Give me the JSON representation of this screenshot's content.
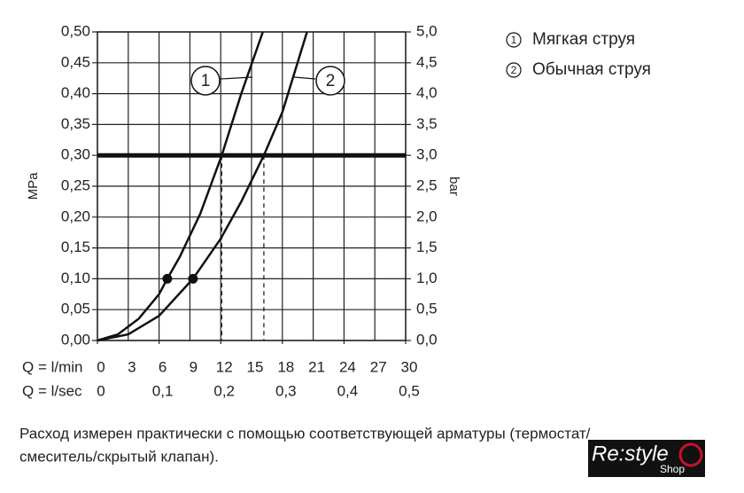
{
  "chart_data": {
    "type": "line",
    "series": [
      {
        "name": "Мягкая струя",
        "label": "1",
        "color": "#111",
        "x": [
          0,
          2,
          4,
          6,
          6.8,
          8,
          10,
          12.1,
          14,
          16.1
        ],
        "values": [
          0,
          0.01,
          0.035,
          0.075,
          0.1,
          0.135,
          0.205,
          0.3,
          0.4,
          0.5
        ]
      },
      {
        "name": "Обычная струя",
        "label": "2",
        "color": "#111",
        "x": [
          0,
          3,
          6,
          9.3,
          12,
          14,
          16.2,
          18,
          20.4
        ],
        "values": [
          0,
          0.01,
          0.04,
          0.1,
          0.165,
          0.225,
          0.3,
          0.37,
          0.5
        ]
      }
    ],
    "dots": [
      {
        "x": 6.8,
        "y": 0.1
      },
      {
        "x": 9.3,
        "y": 0.1
      }
    ],
    "reference_line": 0.3,
    "drop_lines": [
      {
        "x": 12.1,
        "y": 0.3
      },
      {
        "x": 16.2,
        "y": 0.3
      }
    ],
    "xlim": [
      0,
      30
    ],
    "xticks": [
      0,
      3,
      6,
      9,
      12,
      15,
      18,
      21,
      24,
      27,
      30
    ],
    "xlabel": "Q = l/min",
    "x2lim": [
      0,
      0.5
    ],
    "x2ticks": [
      0,
      {
        "value": 0.1,
        "label": "0,1"
      },
      {
        "value": 0.2,
        "label": "0,2"
      },
      {
        "value": 0.3,
        "label": "0,3"
      },
      {
        "value": 0.4,
        "label": "0,4"
      },
      {
        "value": 0.5,
        "label": "0,5"
      }
    ],
    "x2label": "Q = l/sec",
    "ylim": [
      0,
      0.5
    ],
    "yticks": [
      {
        "value": 0,
        "label": "0,00"
      },
      {
        "value": 0.05,
        "label": "0,05"
      },
      {
        "value": 0.1,
        "label": "0,10"
      },
      {
        "value": 0.15,
        "label": "0,15"
      },
      {
        "value": 0.2,
        "label": "0,20"
      },
      {
        "value": 0.25,
        "label": "0,25"
      },
      {
        "value": 0.3,
        "label": "0,30"
      },
      {
        "value": 0.35,
        "label": "0,35"
      },
      {
        "value": 0.4,
        "label": "0,40"
      },
      {
        "value": 0.45,
        "label": "0,45"
      },
      {
        "value": 0.5,
        "label": "0,50"
      }
    ],
    "ylabel": "MPa",
    "y2lim": [
      0,
      5
    ],
    "y2ticks": [
      {
        "value": 0,
        "label": "0,0"
      },
      {
        "value": 0.5,
        "label": "0,5"
      },
      {
        "value": 1,
        "label": "1,0"
      },
      {
        "value": 1.5,
        "label": "1,5"
      },
      {
        "value": 2,
        "label": "2,0"
      },
      {
        "value": 2.5,
        "label": "2,5"
      },
      {
        "value": 3,
        "label": "3,0"
      },
      {
        "value": 3.5,
        "label": "3,5"
      },
      {
        "value": 4,
        "label": "4,0"
      },
      {
        "value": 4.5,
        "label": "4,5"
      },
      {
        "value": 5,
        "label": "5,0"
      }
    ],
    "y2label": "bar",
    "grid": true,
    "note_lines": [
      "Расход измерен практически с помощью соответствующей арматуры (термостат/",
      "смеситель/скрытый клапан)."
    ],
    "logo": {
      "text": "Re:style",
      "sub": "Shop"
    }
  }
}
